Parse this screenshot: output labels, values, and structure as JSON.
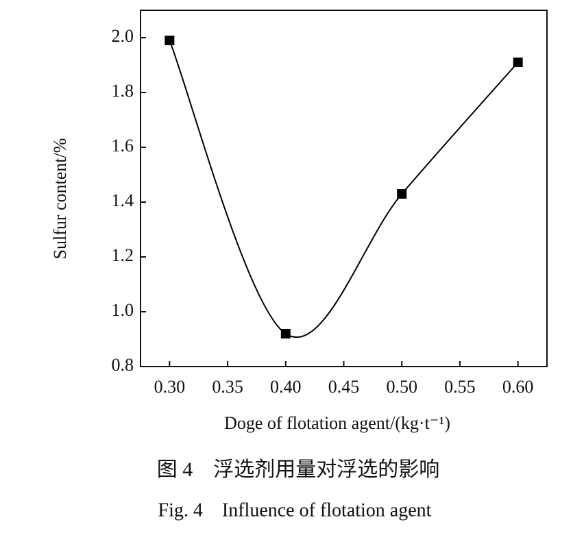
{
  "chart_data": {
    "type": "line",
    "x": [
      0.3,
      0.4,
      0.5,
      0.6
    ],
    "series": [
      {
        "name": "Sulfur content",
        "color": "#000000",
        "values": [
          1.99,
          0.92,
          1.43,
          1.91
        ]
      }
    ],
    "xlim": [
      0.275,
      0.625
    ],
    "xticks": [
      {
        "value": 0.3,
        "label": "0.30"
      },
      0.35,
      {
        "value": 0.4,
        "label": "0.40"
      },
      0.45,
      {
        "value": 0.5,
        "label": "0.50"
      },
      0.55,
      {
        "value": 0.6,
        "label": "0.60"
      }
    ],
    "ylim": [
      0.8,
      2.1
    ],
    "yticks": [
      0.8,
      {
        "value": 1,
        "label": "1.0"
      },
      1.2,
      1.4,
      1.6,
      1.8,
      {
        "value": 2,
        "label": "2.0"
      }
    ],
    "xlabel": "Doge of flotation agent/(kg·t⁻¹)",
    "ylabel": "Sulfur content/%",
    "caption_cn": "图 4　浮选剂用量对浮选的影响",
    "caption_en": "Fig. 4　Influence of flotation agent"
  }
}
